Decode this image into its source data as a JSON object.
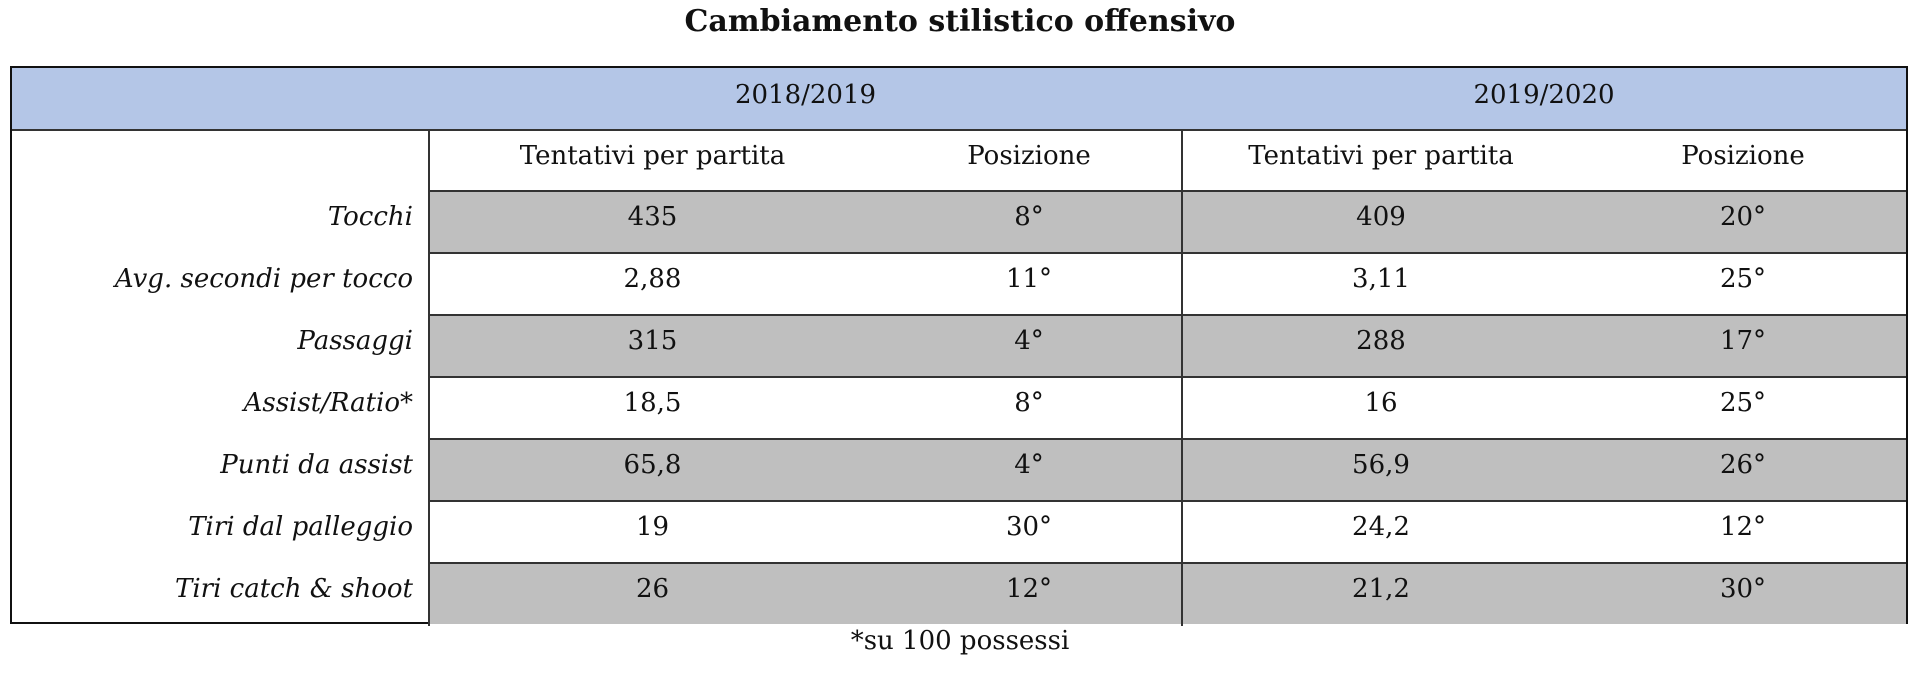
{
  "title": "Cambiamento stilistico offensivo",
  "table": {
    "header": [
      "2018/2019",
      "2019/2020"
    ],
    "subheader": [
      "Tentativi per partita",
      "Posizione",
      "Tentativi per partita",
      "Posizione"
    ],
    "rows": [
      {
        "label": "Tocchi",
        "cells": [
          "435",
          "8°",
          "409",
          "20°"
        ]
      },
      {
        "label": "Avg. secondi per tocco",
        "cells": [
          "2,88",
          "11°",
          "3,11",
          "25°"
        ]
      },
      {
        "label": "Passaggi",
        "cells": [
          "315",
          "4°",
          "288",
          "17°"
        ]
      },
      {
        "label": "Assist/Ratio*",
        "cells": [
          "18,5",
          "8°",
          "16",
          "25°"
        ]
      },
      {
        "label": "Punti da assist",
        "cells": [
          "65,8",
          "4°",
          "56,9",
          "26°"
        ]
      },
      {
        "label": "Tiri dal palleggio",
        "cells": [
          "19",
          "30°",
          "24,2",
          "12°"
        ]
      },
      {
        "label": "Tiri catch & shoot",
        "cells": [
          "26",
          "12°",
          "21,2",
          "30°"
        ]
      }
    ]
  },
  "footnote": "*su 100 possessi"
}
